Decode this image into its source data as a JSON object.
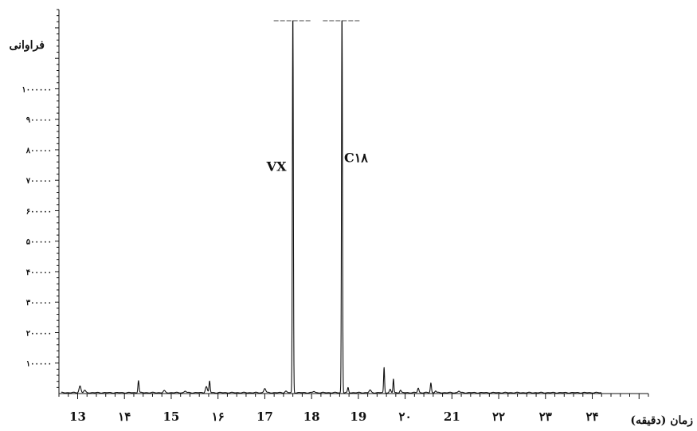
{
  "chart_data": {
    "type": "line",
    "ylabel": "فراوانی",
    "xlabel": "زمان (دقیقه)",
    "xlim": [
      12.6,
      25.2
    ],
    "ylim": [
      0,
      1260000
    ],
    "y_ticks": [
      {
        "value": 100000,
        "label": "۱۰۰۰۰۰"
      },
      {
        "value": 200000,
        "label": "۲۰۰۰۰۰"
      },
      {
        "value": 300000,
        "label": "۳۰۰۰۰۰"
      },
      {
        "value": 400000,
        "label": "۴۰۰۰۰۰"
      },
      {
        "value": 500000,
        "label": "۵۰۰۰۰۰"
      },
      {
        "value": 600000,
        "label": "۶۰۰۰۰۰"
      },
      {
        "value": 700000,
        "label": "۷۰۰۰۰۰"
      },
      {
        "value": 800000,
        "label": "۸۰۰۰۰۰"
      },
      {
        "value": 900000,
        "label": "۹۰۰۰۰۰"
      },
      {
        "value": 1000000,
        "label": "۱۰۰۰۰۰۰"
      }
    ],
    "x_ticks": [
      {
        "value": 13,
        "label": "13"
      },
      {
        "value": 14,
        "label": "۱۴"
      },
      {
        "value": 15,
        "label": "15"
      },
      {
        "value": 16,
        "label": "۱۶"
      },
      {
        "value": 17,
        "label": "17"
      },
      {
        "value": 18,
        "label": "18"
      },
      {
        "value": 19,
        "label": "19"
      },
      {
        "value": 20,
        "label": "۲۰"
      },
      {
        "value": 21,
        "label": "21"
      },
      {
        "value": 22,
        "label": "۲۲"
      },
      {
        "value": 23,
        "label": "۲۳"
      },
      {
        "value": 24,
        "label": "۲۴"
      }
    ],
    "baseline": 3000,
    "peaks": [
      {
        "x": 13.05,
        "y": 22000,
        "w": 0.02
      },
      {
        "x": 13.15,
        "y": 7000,
        "w": 0.02
      },
      {
        "x": 14.3,
        "y": 40000,
        "w": 0.012
      },
      {
        "x": 14.85,
        "y": 6000,
        "w": 0.02
      },
      {
        "x": 15.3,
        "y": 5000,
        "w": 0.02
      },
      {
        "x": 15.75,
        "y": 20000,
        "w": 0.02
      },
      {
        "x": 15.82,
        "y": 38000,
        "w": 0.012
      },
      {
        "x": 17.0,
        "y": 14000,
        "w": 0.02
      },
      {
        "x": 17.45,
        "y": 5000,
        "w": 0.02
      },
      {
        "x": 17.6,
        "y": 1280000,
        "w": 0.01
      },
      {
        "x": 18.05,
        "y": 4000,
        "w": 0.02
      },
      {
        "x": 18.65,
        "y": 1280000,
        "w": 0.01
      },
      {
        "x": 18.78,
        "y": 16000,
        "w": 0.012
      },
      {
        "x": 19.25,
        "y": 8000,
        "w": 0.02
      },
      {
        "x": 19.55,
        "y": 82000,
        "w": 0.01
      },
      {
        "x": 19.68,
        "y": 10000,
        "w": 0.015
      },
      {
        "x": 19.75,
        "y": 45000,
        "w": 0.01
      },
      {
        "x": 19.9,
        "y": 8000,
        "w": 0.015
      },
      {
        "x": 20.28,
        "y": 15000,
        "w": 0.015
      },
      {
        "x": 20.55,
        "y": 32000,
        "w": 0.012
      },
      {
        "x": 20.65,
        "y": 6000,
        "w": 0.015
      },
      {
        "x": 21.15,
        "y": 5000,
        "w": 0.02
      }
    ],
    "clipped_peaks": [
      17.6,
      18.65
    ],
    "annotations": [
      {
        "text": "VX",
        "x": 17.25,
        "y": 730000
      },
      {
        "text": "C۱۸",
        "x": 18.95,
        "y": 760000
      }
    ],
    "grid": false,
    "legend": "none"
  }
}
